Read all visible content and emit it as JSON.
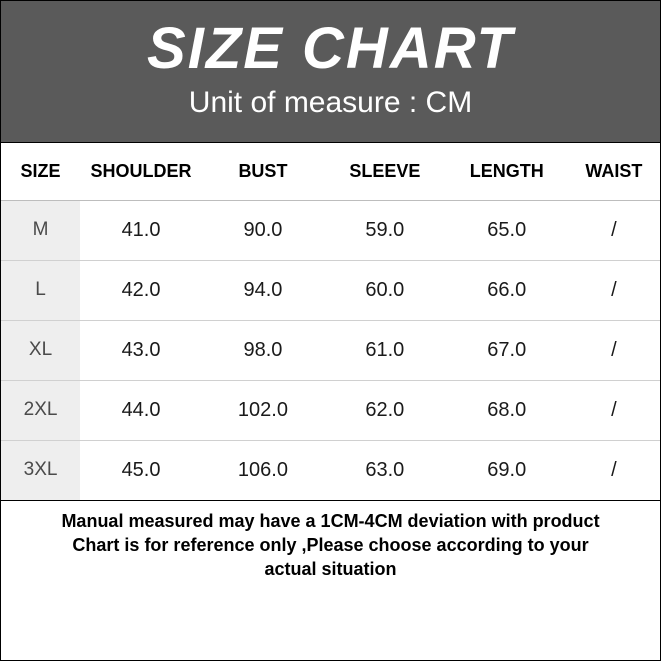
{
  "header": {
    "title": "SIZE CHART",
    "subtitle": "Unit of measure : CM",
    "bg_color": "#5a5a5a",
    "text_color": "#ffffff",
    "title_fontsize": 58,
    "subtitle_fontsize": 30
  },
  "table": {
    "columns": [
      "SIZE",
      "SHOULDER",
      "BUST",
      "SLEEVE",
      "LENGTH",
      "WAIST"
    ],
    "rows": [
      [
        "M",
        "41.0",
        "90.0",
        "59.0",
        "65.0",
        "/"
      ],
      [
        "L",
        "42.0",
        "94.0",
        "60.0",
        "66.0",
        "/"
      ],
      [
        "XL",
        "43.0",
        "98.0",
        "61.0",
        "67.0",
        "/"
      ],
      [
        "2XL",
        "44.0",
        "102.0",
        "62.0",
        "68.0",
        "/"
      ],
      [
        "3XL",
        "45.0",
        "106.0",
        "63.0",
        "69.0",
        "/"
      ]
    ],
    "header_bg": "#ffffff",
    "size_col_bg": "#eeeeee",
    "border_color": "#d0d0d0",
    "header_fontsize": 18,
    "cell_fontsize": 20
  },
  "footer": {
    "line1": "Manual measured may have a 1CM-4CM deviation with product",
    "line2": "Chart is for reference only ,Please choose according to your",
    "line3": "actual situation",
    "fontsize": 18
  }
}
